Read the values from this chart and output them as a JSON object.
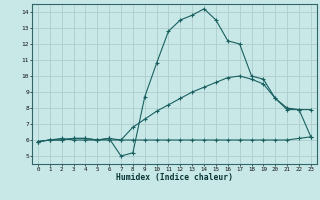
{
  "xlabel": "Humidex (Indice chaleur)",
  "background_color": "#c8e8e8",
  "grid_color": "#b0cccc",
  "line_color": "#1a6060",
  "xlim": [
    -0.5,
    23.5
  ],
  "ylim": [
    4.5,
    14.5
  ],
  "xticks": [
    0,
    1,
    2,
    3,
    4,
    5,
    6,
    7,
    8,
    9,
    10,
    11,
    12,
    13,
    14,
    15,
    16,
    17,
    18,
    19,
    20,
    21,
    22,
    23
  ],
  "yticks": [
    5,
    6,
    7,
    8,
    9,
    10,
    11,
    12,
    13,
    14
  ],
  "line1_x": [
    0,
    1,
    2,
    3,
    4,
    5,
    6,
    7,
    8,
    9,
    10,
    11,
    12,
    13,
    14,
    15,
    16,
    17,
    18,
    19,
    20,
    21,
    22,
    23
  ],
  "line1_y": [
    5.9,
    6.0,
    6.1,
    6.0,
    6.0,
    6.0,
    6.0,
    6.0,
    6.0,
    6.0,
    6.0,
    6.0,
    6.0,
    6.0,
    6.0,
    6.0,
    6.0,
    6.0,
    6.0,
    6.0,
    6.0,
    6.0,
    6.1,
    6.2
  ],
  "line2_x": [
    0,
    1,
    2,
    3,
    4,
    5,
    6,
    7,
    8,
    9,
    10,
    11,
    12,
    13,
    14,
    15,
    16,
    17,
    18,
    19,
    20,
    21,
    22,
    23
  ],
  "line2_y": [
    5.9,
    6.0,
    6.0,
    6.1,
    6.1,
    6.0,
    6.1,
    6.0,
    6.8,
    7.3,
    7.8,
    8.2,
    8.6,
    9.0,
    9.3,
    9.6,
    9.9,
    10.0,
    9.8,
    9.5,
    8.6,
    8.0,
    7.9,
    7.9
  ],
  "line3_x": [
    0,
    1,
    2,
    3,
    4,
    5,
    6,
    7,
    8,
    9,
    10,
    11,
    12,
    13,
    14,
    15,
    16,
    17,
    18,
    19,
    20,
    21,
    22,
    23
  ],
  "line3_y": [
    5.9,
    6.0,
    6.0,
    6.1,
    6.1,
    6.0,
    6.1,
    5.0,
    5.2,
    8.7,
    10.8,
    12.8,
    13.5,
    13.8,
    14.2,
    13.5,
    12.2,
    12.0,
    10.0,
    9.8,
    8.6,
    7.9,
    7.9,
    6.2
  ]
}
